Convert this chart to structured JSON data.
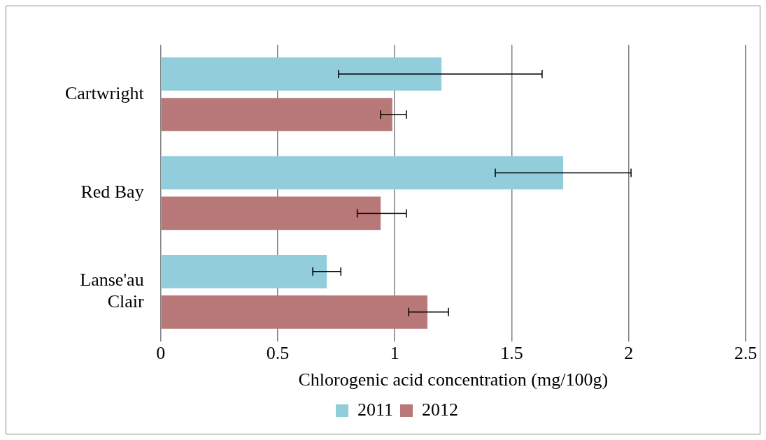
{
  "chart_data": {
    "type": "bar",
    "orientation": "horizontal",
    "xlabel": "Chlorogenic acid concentration (mg/100g)",
    "categories": [
      "Cartwright",
      "Red Bay",
      "Lanse'au Clair"
    ],
    "series": [
      {
        "name": "2011",
        "color": "#92cddc",
        "values": [
          1.2,
          1.72,
          0.71
        ],
        "errors": [
          [
            0.76,
            1.63
          ],
          [
            1.43,
            2.01
          ],
          [
            0.65,
            0.77
          ]
        ]
      },
      {
        "name": "2012",
        "color": "#b87878",
        "values": [
          0.99,
          0.94,
          1.14
        ],
        "errors": [
          [
            0.94,
            1.05
          ],
          [
            0.84,
            1.05
          ],
          [
            1.06,
            1.23
          ]
        ]
      }
    ],
    "xlim": [
      0,
      2.5
    ],
    "xticks": [
      0,
      0.5,
      1,
      1.5,
      2,
      2.5
    ],
    "grid": "x",
    "legend": "bottom"
  }
}
